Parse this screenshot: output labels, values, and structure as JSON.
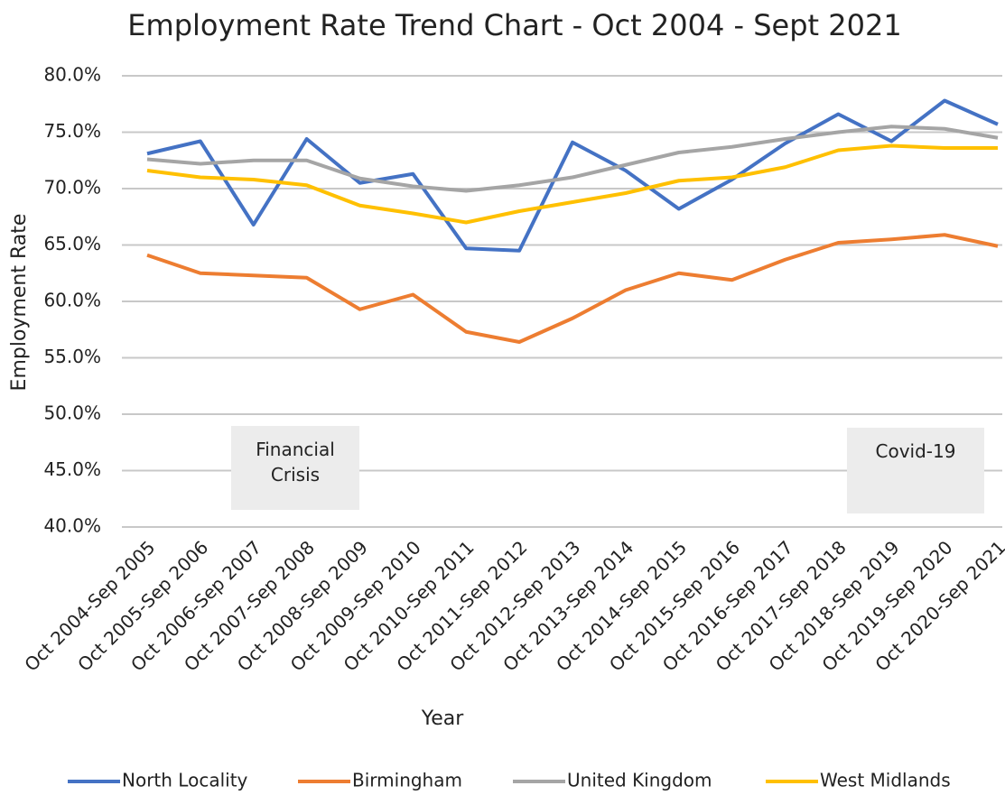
{
  "chart_data": {
    "type": "line",
    "title": "Employment Rate Trend Chart -  Oct 2004 - Sept 2021",
    "x_label": "Year",
    "y_label": "Employment Rate",
    "categories": [
      "Oct 2004-Sep 2005",
      "Oct 2005-Sep 2006",
      "Oct 2006-Sep 2007",
      "Oct 2007-Sep 2008",
      "Oct 2008-Sep 2009",
      "Oct 2009-Sep 2010",
      "Oct 2010-Sep 2011",
      "Oct 2011-Sep 2012",
      "Oct 2012-Sep 2013",
      "Oct 2013-Sep 2014",
      "Oct 2014-Sep 2015",
      "Oct 2015-Sep 2016",
      "Oct 2016-Sep 2017",
      "Oct 2017-Sep 2018",
      "Oct 2018-Sep 2019",
      "Oct 2019-Sep 2020",
      "Oct 2020-Sep 2021"
    ],
    "series": [
      {
        "name": "North Locality",
        "color": "#4472c4",
        "values": [
          73.1,
          74.2,
          66.8,
          74.4,
          70.5,
          71.3,
          64.7,
          64.5,
          74.1,
          71.6,
          68.2,
          70.8,
          74.0,
          76.6,
          74.2,
          77.8,
          75.7
        ]
      },
      {
        "name": "Birmingham",
        "color": "#ed7d31",
        "values": [
          64.1,
          62.5,
          62.3,
          62.1,
          59.3,
          60.6,
          57.3,
          56.4,
          58.5,
          61.0,
          62.5,
          61.9,
          63.7,
          65.2,
          65.5,
          65.9,
          64.9
        ]
      },
      {
        "name": "United Kingdom",
        "color": "#a5a5a5",
        "values": [
          72.6,
          72.2,
          72.5,
          72.5,
          70.9,
          70.2,
          69.8,
          70.3,
          71.0,
          72.1,
          73.2,
          73.7,
          74.4,
          75.0,
          75.5,
          75.3,
          74.5
        ]
      },
      {
        "name": "West Midlands",
        "color": "#ffc000",
        "values": [
          71.6,
          71.0,
          70.8,
          70.3,
          68.5,
          67.8,
          67.0,
          68.0,
          68.8,
          69.6,
          70.7,
          71.0,
          71.9,
          73.4,
          73.8,
          73.6,
          73.6
        ]
      }
    ],
    "ylim": [
      40,
      80
    ],
    "yticks": [
      {
        "value": 40,
        "label": "40.0%"
      },
      {
        "value": 45,
        "label": "45.0%"
      },
      {
        "value": 50,
        "label": "50.0%"
      },
      {
        "value": 55,
        "label": "55.0%"
      },
      {
        "value": 60,
        "label": "60.0%"
      },
      {
        "value": 65,
        "label": "65.0%"
      },
      {
        "value": 70,
        "label": "70.0%"
      },
      {
        "value": 75,
        "label": "75.0%"
      },
      {
        "value": 80,
        "label": "80.0%"
      }
    ],
    "grid": true,
    "legend": "bottom",
    "annotations": [
      {
        "text": "Financial Crisis"
      },
      {
        "text": "Covid-19"
      }
    ]
  }
}
